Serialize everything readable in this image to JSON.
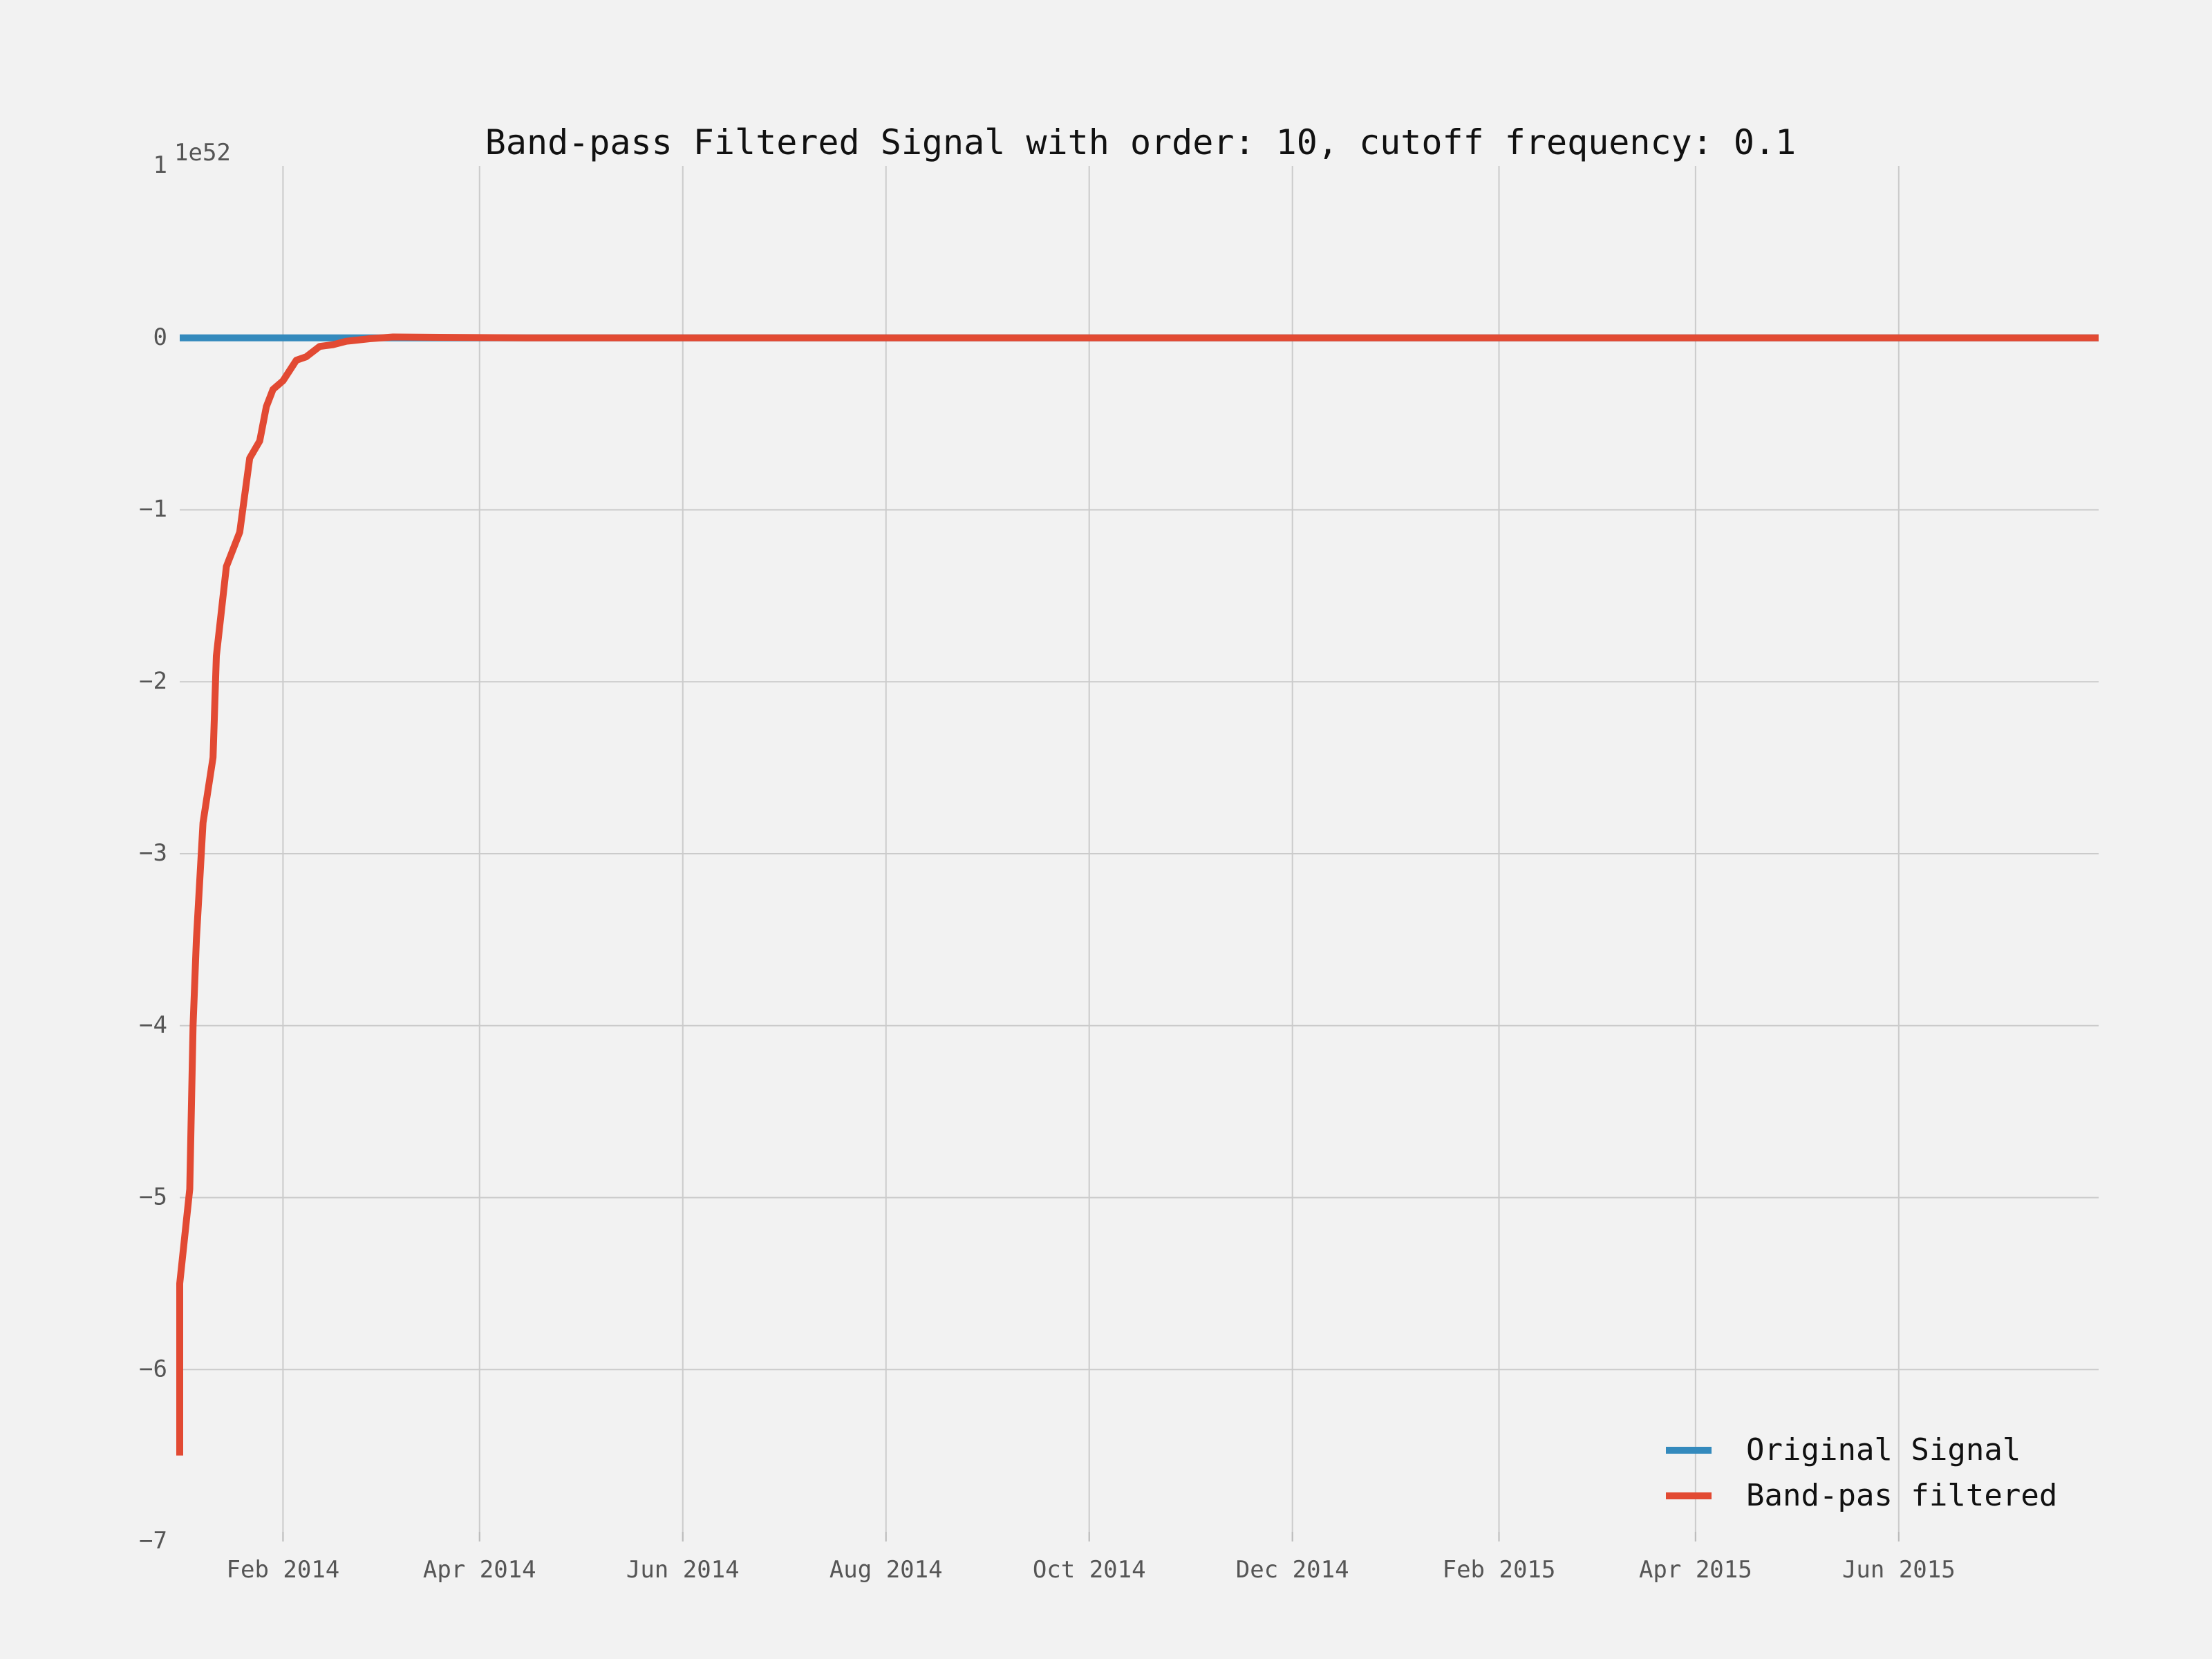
{
  "chart_data": {
    "type": "line",
    "title": "Band-pass Filtered Signal with order: 10, cutoff frequency: 0.1",
    "xlabel": "",
    "ylabel": "",
    "y_offset_label": "1e52",
    "y_scale_factor": 1e+52,
    "xlim": [
      "2014-01-01",
      "2015-07-31"
    ],
    "ylim": [
      -7,
      1
    ],
    "x_ticks": [
      {
        "date": "2014-02-01",
        "label": "Feb 2014"
      },
      {
        "date": "2014-04-01",
        "label": "Apr 2014"
      },
      {
        "date": "2014-06-01",
        "label": "Jun 2014"
      },
      {
        "date": "2014-08-01",
        "label": "Aug 2014"
      },
      {
        "date": "2014-10-01",
        "label": "Oct 2014"
      },
      {
        "date": "2014-12-01",
        "label": "Dec 2014"
      },
      {
        "date": "2015-02-01",
        "label": "Feb 2015"
      },
      {
        "date": "2015-04-01",
        "label": "Apr 2015"
      },
      {
        "date": "2015-06-01",
        "label": "Jun 2015"
      }
    ],
    "y_ticks": [
      {
        "value": 1,
        "label": "1"
      },
      {
        "value": 0,
        "label": "0"
      },
      {
        "value": -1,
        "label": "−1"
      },
      {
        "value": -2,
        "label": "−2"
      },
      {
        "value": -3,
        "label": "−3"
      },
      {
        "value": -4,
        "label": "−4"
      },
      {
        "value": -5,
        "label": "−5"
      },
      {
        "value": -6,
        "label": "−6"
      },
      {
        "value": -7,
        "label": "−7"
      }
    ],
    "grid": true,
    "legend_position": "bottom-right",
    "series": [
      {
        "name": "Original Signal",
        "color": "#348abd",
        "points": [
          {
            "x": "2014-01-01",
            "y": 0
          },
          {
            "x": "2015-07-31",
            "y": 0
          }
        ]
      },
      {
        "name": "Band-pas filtered",
        "color": "#e24a33",
        "points": [
          {
            "x": "2014-01-01",
            "y": -6.5
          },
          {
            "x": "2014-01-01",
            "y": -5.5
          },
          {
            "x": "2014-01-04",
            "y": -4.95
          },
          {
            "x": "2014-01-05",
            "y": -4.0
          },
          {
            "x": "2014-01-06",
            "y": -3.5
          },
          {
            "x": "2014-01-08",
            "y": -2.82
          },
          {
            "x": "2014-01-11",
            "y": -2.44
          },
          {
            "x": "2014-01-12",
            "y": -1.85
          },
          {
            "x": "2014-01-15",
            "y": -1.33
          },
          {
            "x": "2014-01-19",
            "y": -1.13
          },
          {
            "x": "2014-01-22",
            "y": -0.7
          },
          {
            "x": "2014-01-25",
            "y": -0.6
          },
          {
            "x": "2014-01-27",
            "y": -0.4
          },
          {
            "x": "2014-01-29",
            "y": -0.3
          },
          {
            "x": "2014-02-01",
            "y": -0.25
          },
          {
            "x": "2014-02-05",
            "y": -0.13
          },
          {
            "x": "2014-02-08",
            "y": -0.11
          },
          {
            "x": "2014-02-12",
            "y": -0.05
          },
          {
            "x": "2014-02-16",
            "y": -0.04
          },
          {
            "x": "2014-02-20",
            "y": -0.02
          },
          {
            "x": "2014-02-27",
            "y": -0.005
          },
          {
            "x": "2014-03-06",
            "y": 0.005
          },
          {
            "x": "2014-03-20",
            "y": 0.003
          },
          {
            "x": "2014-04-15",
            "y": 0
          },
          {
            "x": "2015-07-31",
            "y": 0
          }
        ]
      }
    ]
  }
}
